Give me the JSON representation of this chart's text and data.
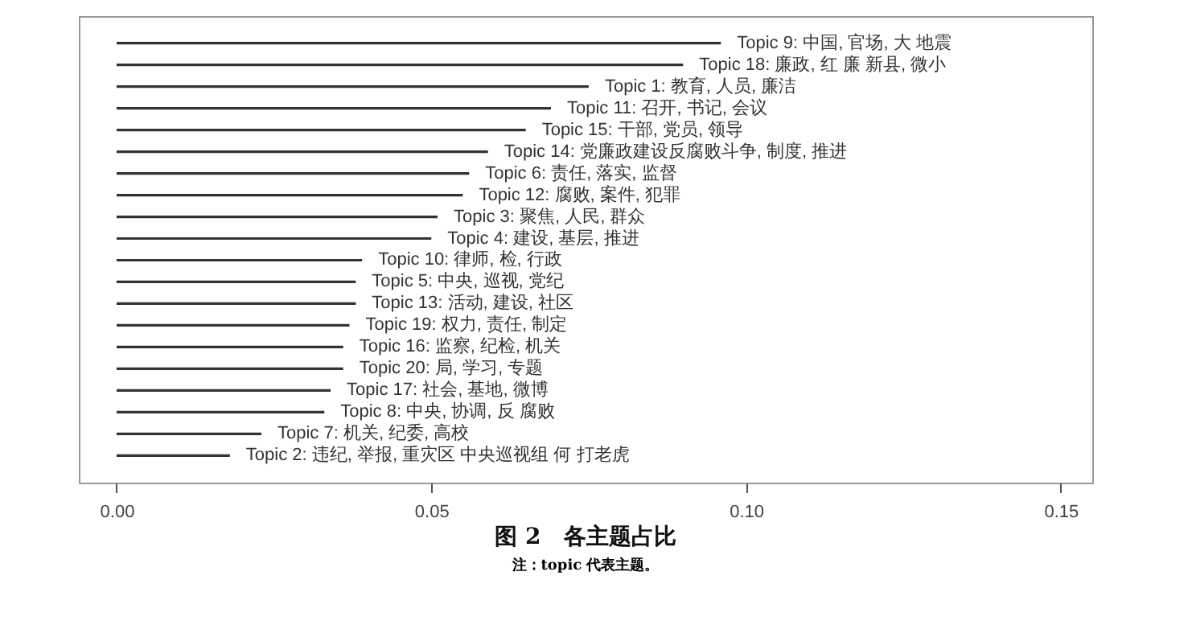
{
  "chart_data": {
    "type": "bar",
    "orientation": "horizontal",
    "title": "图 2　各主题占比",
    "annotations": [
      "注：topic 代表主题。"
    ],
    "categories": [
      "Topic 9: 中国, 官场, 大 地震",
      "Topic 18: 廉政, 红 廉 新县, 微小",
      "Topic 1: 教育, 人员, 廉洁",
      "Topic 11: 召开, 书记, 会议",
      "Topic 15: 干部, 党员, 领导",
      "Topic 14: 党廉政建设反腐败斗争, 制度, 推进",
      "Topic 6: 责任, 落实, 监督",
      "Topic 12: 腐败, 案件, 犯罪",
      "Topic 3: 聚焦, 人民, 群众",
      "Topic 4: 建设, 基层, 推进",
      "Topic 10: 律师, 检, 行政",
      "Topic 5: 中央, 巡视, 党纪",
      "Topic 13: 活动, 建设, 社区",
      "Topic 19: 权力, 责任, 制定",
      "Topic 16: 监察, 纪检, 机关",
      "Topic 20: 局, 学习, 专题",
      "Topic 17: 社会, 基地, 微博",
      "Topic 8: 中央, 协调, 反 腐败",
      "Topic 7: 机关, 纪委, 高校",
      "Topic 2: 违纪, 举报, 重灾区 中央巡视组 何 打老虎"
    ],
    "values": [
      0.096,
      0.09,
      0.075,
      0.069,
      0.065,
      0.059,
      0.056,
      0.055,
      0.051,
      0.05,
      0.039,
      0.038,
      0.038,
      0.037,
      0.036,
      0.036,
      0.034,
      0.033,
      0.023,
      0.018
    ],
    "color": "#333333",
    "xlim": [
      -0.006,
      0.155
    ],
    "xticks": [
      {
        "value": 0,
        "label": "0.00"
      },
      0.05,
      {
        "value": 0.1,
        "label": "0.10"
      },
      {
        "value": 0.15,
        "label": "0.15"
      }
    ],
    "tick_labels": "x"
  }
}
